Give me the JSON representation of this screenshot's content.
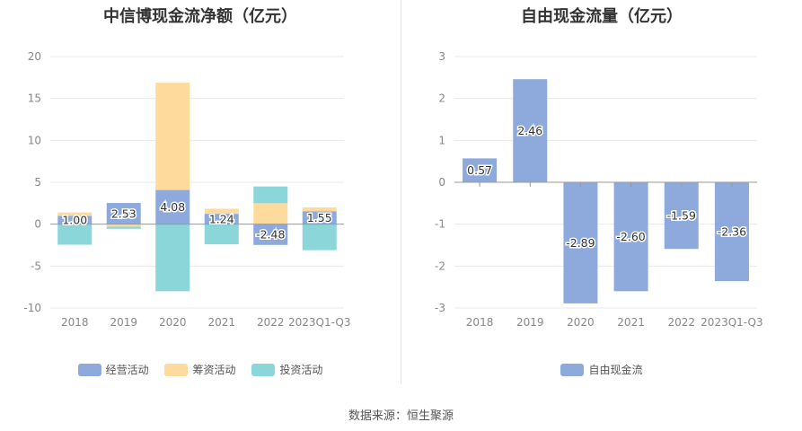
{
  "colors": {
    "operating": "#8eaadc",
    "financing": "#fedb9c",
    "investing": "#8ad6d9",
    "fcf": "#8eaadc",
    "grid": "#e8e8e8",
    "zero_line": "#999999"
  },
  "chart_data": [
    {
      "type": "bar",
      "stacked": true,
      "title": "中信博现金流净额（亿元）",
      "categories": [
        "2018",
        "2019",
        "2020",
        "2021",
        "2022",
        "2023Q1-Q3"
      ],
      "ylim": [
        -10,
        20
      ],
      "yticks": [
        "20",
        "15",
        "10",
        "5",
        "0",
        "-5",
        "-10"
      ],
      "series": [
        {
          "name": "经营活动",
          "values": [
            1.0,
            2.53,
            4.08,
            1.24,
            -2.48,
            1.55
          ],
          "labels": [
            "1.00",
            "2.53",
            "4.08",
            "1.24",
            "-2.48",
            "1.55"
          ]
        },
        {
          "name": "筹资活动",
          "values": [
            0.4,
            -0.3,
            12.8,
            0.6,
            2.5,
            0.45
          ]
        },
        {
          "name": "投资活动",
          "values": [
            -2.45,
            -0.25,
            -8.0,
            -2.4,
            2.0,
            -3.1
          ]
        }
      ],
      "legend": [
        "经营活动",
        "筹资活动",
        "投资活动"
      ]
    },
    {
      "type": "bar",
      "title": "自由现金流量（亿元）",
      "categories": [
        "2018",
        "2019",
        "2020",
        "2021",
        "2022",
        "2023Q1-Q3"
      ],
      "ylim": [
        -3,
        3
      ],
      "yticks": [
        "3",
        "2",
        "1",
        "0",
        "-1",
        "-2",
        "-3"
      ],
      "series": [
        {
          "name": "自由现金流",
          "values": [
            0.57,
            2.46,
            -2.89,
            -2.6,
            -1.59,
            -2.36
          ],
          "labels": [
            "0.57",
            "2.46",
            "-2.89",
            "-2.60",
            "-1.59",
            "-2.36"
          ]
        }
      ],
      "legend": [
        "自由现金流"
      ]
    }
  ],
  "footer": "数据来源：恒生聚源"
}
